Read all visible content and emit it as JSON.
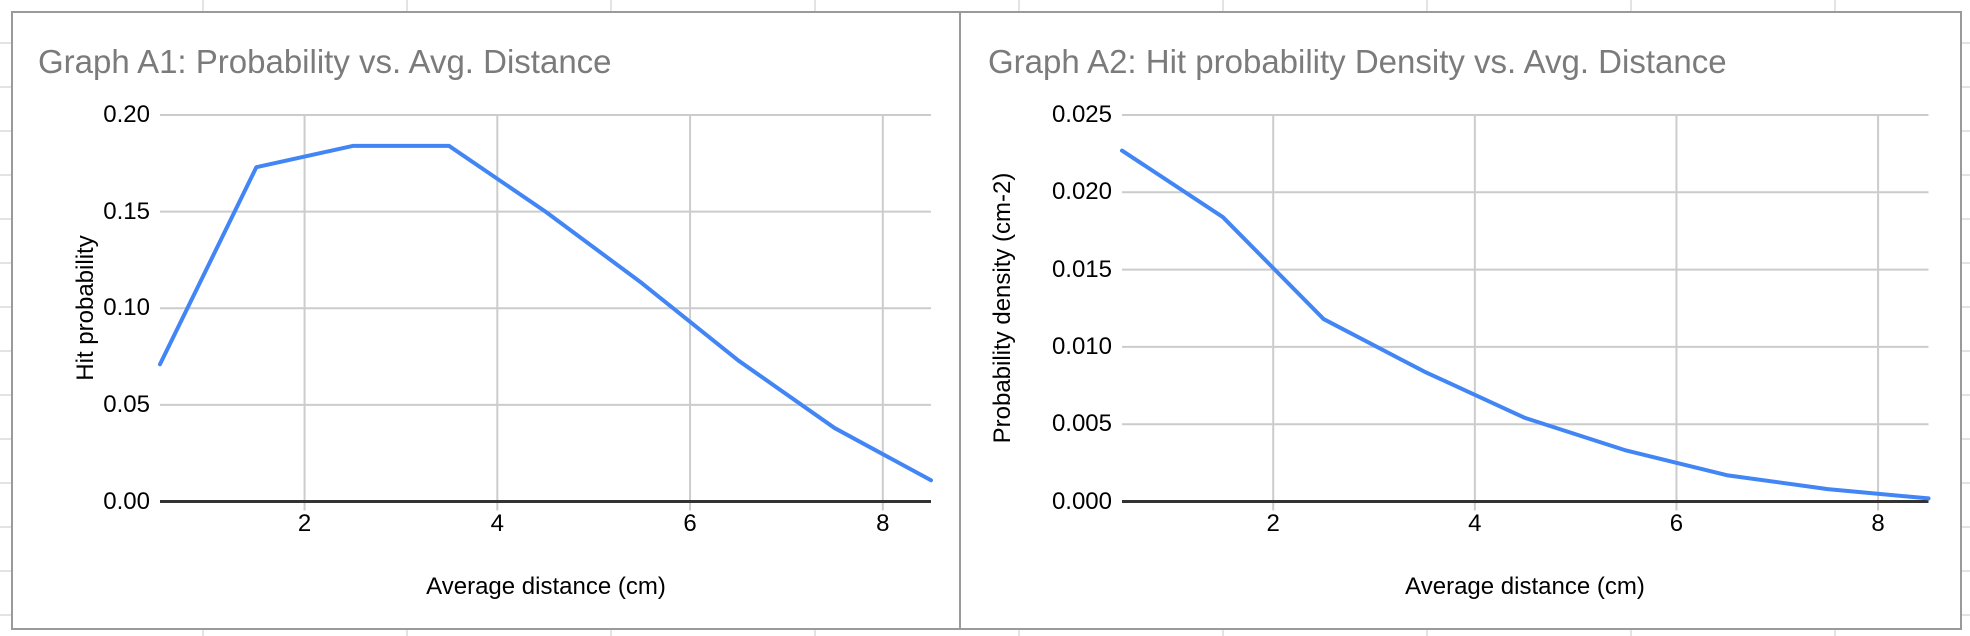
{
  "app_context": "spreadsheet-with-embedded-charts",
  "colors": {
    "series_blue": "#4285f4",
    "gridline": "#cccccc",
    "axis_line": "#333333",
    "chart_title_gray": "#7b7b7b",
    "card_border": "#9a9a9a",
    "sheet_gridline": "#e3e3e3"
  },
  "chart_data": [
    {
      "type": "line",
      "title": "Graph A1: Probability vs. Avg. Distance",
      "xlabel": "Average distance (cm)",
      "ylabel": "Hit probability",
      "legend_position": "none",
      "grid": true,
      "xlim": [
        0.5,
        8.5
      ],
      "ylim": [
        0,
        0.2
      ],
      "x": [
        0.5,
        1.5,
        2.5,
        3.5,
        4.5,
        5.5,
        6.5,
        7.5,
        8.5
      ],
      "y": [
        0.071,
        0.173,
        0.184,
        0.184,
        0.15,
        0.113,
        0.073,
        0.038,
        0.011
      ],
      "series_color": "#4285f4",
      "x_ticks": [
        {
          "value": 2,
          "label": "2"
        },
        {
          "value": 4,
          "label": "4"
        },
        {
          "value": 6,
          "label": "6"
        },
        {
          "value": 8,
          "label": "8"
        }
      ],
      "y_ticks": [
        {
          "value": 0.0,
          "label": "0.00"
        },
        {
          "value": 0.05,
          "label": "0.05"
        },
        {
          "value": 0.1,
          "label": "0.10"
        },
        {
          "value": 0.15,
          "label": "0.15"
        },
        {
          "value": 0.2,
          "label": "0.20"
        }
      ]
    },
    {
      "type": "line",
      "title": "Graph A2: Hit probability Density vs. Avg. Distance",
      "xlabel": "Average distance (cm)",
      "ylabel": "Probability density (cm-2)",
      "legend_position": "none",
      "grid": true,
      "xlim": [
        0.5,
        8.5
      ],
      "ylim": [
        0,
        0.025
      ],
      "x": [
        0.5,
        1.5,
        2.5,
        3.5,
        4.5,
        5.5,
        6.5,
        7.5,
        8.5
      ],
      "y": [
        0.0227,
        0.0184,
        0.0118,
        0.0084,
        0.0054,
        0.0033,
        0.0017,
        0.0008,
        0.0002
      ],
      "series_color": "#4285f4",
      "x_ticks": [
        {
          "value": 2,
          "label": "2"
        },
        {
          "value": 4,
          "label": "4"
        },
        {
          "value": 6,
          "label": "6"
        },
        {
          "value": 8,
          "label": "8"
        }
      ],
      "y_ticks": [
        {
          "value": 0.0,
          "label": "0.000"
        },
        {
          "value": 0.005,
          "label": "0.005"
        },
        {
          "value": 0.01,
          "label": "0.010"
        },
        {
          "value": 0.015,
          "label": "0.015"
        },
        {
          "value": 0.02,
          "label": "0.020"
        },
        {
          "value": 0.025,
          "label": "0.025"
        }
      ]
    }
  ]
}
